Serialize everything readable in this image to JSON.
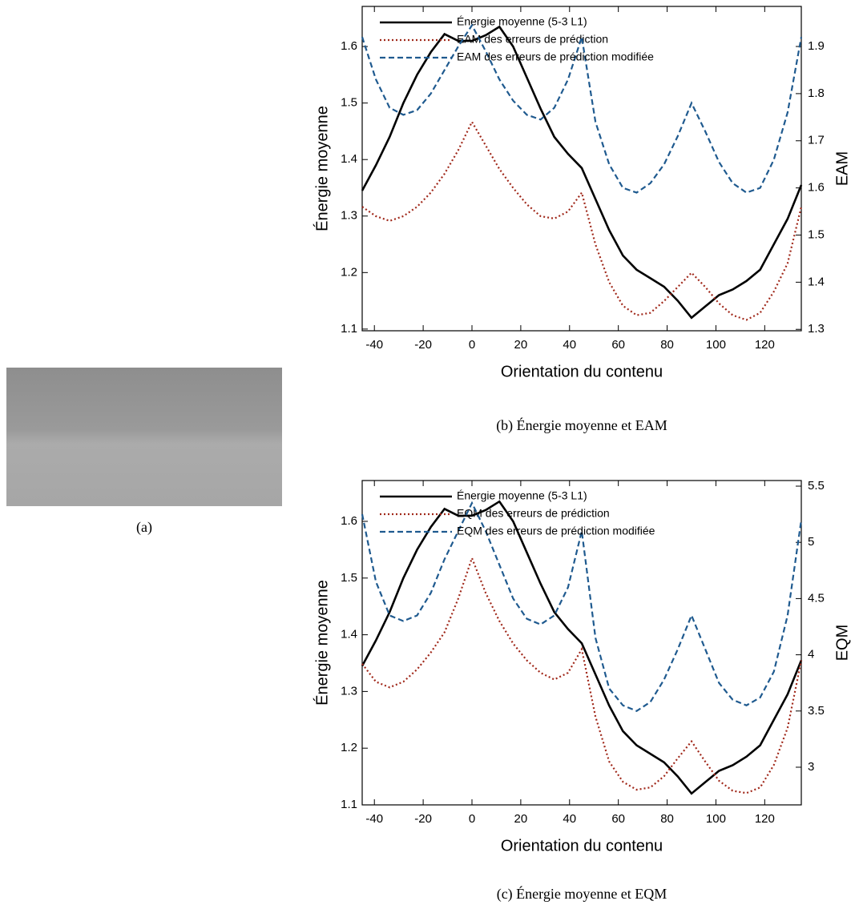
{
  "figure_a": {
    "caption": "(a)"
  },
  "chart_data": [
    {
      "type": "line",
      "caption": "(b) Énergie moyenne et EAM",
      "xlabel": "Orientation du contenu",
      "ylabel": "Énergie moyenne",
      "y2label": "EAM",
      "x": [
        -45,
        -39.375,
        -33.75,
        -28.125,
        -22.5,
        -16.875,
        -11.25,
        -5.625,
        0,
        5.625,
        11.25,
        16.875,
        22.5,
        28.125,
        33.75,
        39.375,
        45,
        50.625,
        56.25,
        61.875,
        67.5,
        73.125,
        78.75,
        84.375,
        90,
        95.625,
        101.25,
        106.875,
        112.5,
        118.125,
        123.75,
        129.375,
        135
      ],
      "xlim": [
        -45,
        135
      ],
      "xticks": [
        -40,
        -20,
        0,
        20,
        40,
        60,
        80,
        100,
        120
      ],
      "ylim": [
        1.097,
        1.671
      ],
      "yticks": [
        1.1,
        1.2,
        1.3,
        1.4,
        1.5,
        1.6
      ],
      "y2lim": [
        1.297,
        1.985
      ],
      "y2ticks": [
        1.3,
        1.4,
        1.5,
        1.6,
        1.7,
        1.8,
        1.9
      ],
      "legend": "upper left",
      "series": [
        {
          "name": "Énergie moyenne (5-3 L1)",
          "color": "#000000",
          "style": "solid",
          "values": [
            1.345,
            1.39,
            1.44,
            1.5,
            1.55,
            1.59,
            1.622,
            1.61,
            1.61,
            1.62,
            1.635,
            1.6,
            1.545,
            1.49,
            1.44,
            1.41,
            1.385,
            1.33,
            1.275,
            1.23,
            1.205,
            1.19,
            1.175,
            1.15,
            1.12,
            1.14,
            1.16,
            1.17,
            1.185,
            1.205,
            1.25,
            1.295,
            1.355
          ]
        },
        {
          "name": "EAM des erreurs de prédiction",
          "color": "#a0281a",
          "style": "dotted",
          "axis": "y2",
          "values": [
            1.56,
            1.54,
            1.53,
            1.54,
            1.56,
            1.59,
            1.63,
            1.68,
            1.74,
            1.69,
            1.64,
            1.6,
            1.565,
            1.54,
            1.535,
            1.55,
            1.59,
            1.48,
            1.4,
            1.35,
            1.33,
            1.335,
            1.36,
            1.39,
            1.42,
            1.39,
            1.355,
            1.33,
            1.32,
            1.335,
            1.38,
            1.44,
            1.56
          ]
        },
        {
          "name": "EAM des erreurs de prédiction modifiée",
          "color": "#1f5a8f",
          "style": "dashed",
          "axis": "y2",
          "values": [
            1.92,
            1.83,
            1.77,
            1.755,
            1.765,
            1.8,
            1.85,
            1.9,
            1.945,
            1.89,
            1.83,
            1.785,
            1.755,
            1.745,
            1.77,
            1.83,
            1.92,
            1.74,
            1.65,
            1.6,
            1.59,
            1.61,
            1.65,
            1.71,
            1.78,
            1.72,
            1.655,
            1.61,
            1.59,
            1.6,
            1.66,
            1.76,
            1.92
          ]
        }
      ]
    },
    {
      "type": "line",
      "caption": "(c) Énergie moyenne et EQM",
      "xlabel": "Orientation du contenu",
      "ylabel": "Énergie moyenne",
      "y2label": "EQM",
      "x": [
        -45,
        -39.375,
        -33.75,
        -28.125,
        -22.5,
        -16.875,
        -11.25,
        -5.625,
        0,
        5.625,
        11.25,
        16.875,
        22.5,
        28.125,
        33.75,
        39.375,
        45,
        50.625,
        56.25,
        61.875,
        67.5,
        73.125,
        78.75,
        84.375,
        90,
        95.625,
        101.25,
        106.875,
        112.5,
        118.125,
        123.75,
        129.375,
        135
      ],
      "xlim": [
        -45,
        135
      ],
      "xticks": [
        -40,
        -20,
        0,
        20,
        40,
        60,
        80,
        100,
        120
      ],
      "ylim": [
        1.1,
        1.672
      ],
      "yticks": [
        1.1,
        1.2,
        1.3,
        1.4,
        1.5,
        1.6
      ],
      "y2lim": [
        2.665,
        5.55
      ],
      "y2ticks": [
        3,
        3.5,
        4,
        4.5,
        5,
        5.5
      ],
      "legend": "upper left",
      "series": [
        {
          "name": "Énergie moyenne (5-3 L1)",
          "color": "#000000",
          "style": "solid",
          "values": [
            1.345,
            1.39,
            1.44,
            1.5,
            1.55,
            1.59,
            1.622,
            1.61,
            1.61,
            1.62,
            1.635,
            1.6,
            1.545,
            1.49,
            1.44,
            1.41,
            1.385,
            1.33,
            1.275,
            1.23,
            1.205,
            1.19,
            1.175,
            1.15,
            1.12,
            1.14,
            1.16,
            1.17,
            1.185,
            1.205,
            1.25,
            1.295,
            1.355
          ]
        },
        {
          "name": "EQM des erreurs de prédiction",
          "color": "#a0281a",
          "style": "dotted",
          "axis": "y2",
          "values": [
            3.92,
            3.76,
            3.71,
            3.76,
            3.87,
            4.02,
            4.2,
            4.5,
            4.86,
            4.55,
            4.3,
            4.1,
            3.95,
            3.84,
            3.78,
            3.84,
            4.05,
            3.45,
            3.05,
            2.87,
            2.8,
            2.82,
            2.92,
            3.08,
            3.23,
            3.05,
            2.88,
            2.79,
            2.77,
            2.82,
            3.02,
            3.35,
            3.95
          ]
        },
        {
          "name": "EQM des erreurs de prédiction modifiée",
          "color": "#1f5a8f",
          "style": "dashed",
          "axis": "y2",
          "values": [
            5.25,
            4.65,
            4.35,
            4.3,
            4.35,
            4.55,
            4.85,
            5.1,
            5.35,
            5.1,
            4.8,
            4.5,
            4.32,
            4.27,
            4.35,
            4.6,
            5.1,
            4.15,
            3.7,
            3.55,
            3.5,
            3.58,
            3.78,
            4.05,
            4.35,
            4.05,
            3.75,
            3.6,
            3.55,
            3.62,
            3.85,
            4.35,
            5.2
          ]
        }
      ]
    }
  ]
}
